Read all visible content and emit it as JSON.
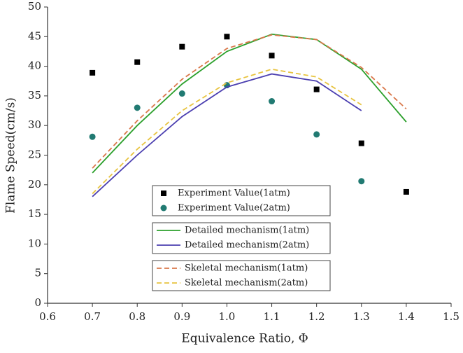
{
  "chart_data": {
    "type": "line",
    "xlabel": "Equivalence Ratio, Φ",
    "ylabel": "Flame Speed(cm/s)",
    "xlim": [
      0.6,
      1.5
    ],
    "ylim": [
      0,
      50
    ],
    "xticks": [
      0.6,
      0.7,
      0.8,
      0.9,
      {
        "value": 1,
        "label": "1.0"
      },
      1.1,
      1.2,
      1.3,
      1.4,
      1.5
    ],
    "yticks": [
      0,
      5,
      10,
      15,
      20,
      25,
      30,
      35,
      40,
      45,
      50
    ],
    "series": [
      {
        "name": "Experiment Value(1atm)",
        "color": "#000000",
        "kind": "square",
        "x": [
          0.7,
          0.8,
          0.9,
          1,
          1.1,
          1.2,
          1.3,
          1.4
        ],
        "values": [
          38.9,
          40.7,
          43.3,
          45.0,
          41.8,
          36.1,
          27.0,
          18.8
        ]
      },
      {
        "name": "Experiment Value(2atm)",
        "color": "#217a72",
        "kind": "circle",
        "x": [
          0.7,
          0.8,
          0.9,
          1,
          1.1,
          1.2,
          1.3
        ],
        "values": [
          28.1,
          33.0,
          35.4,
          36.8,
          34.1,
          28.5,
          20.6
        ]
      },
      {
        "name": "Detailed mechanism(1atm)",
        "color": "#2ca02c",
        "kind": "solid",
        "x": [
          0.7,
          0.8,
          0.9,
          1,
          1.1,
          1.2,
          1.3,
          1.4
        ],
        "values": [
          22.0,
          30.0,
          37.0,
          42.5,
          45.4,
          44.5,
          39.5,
          30.6
        ]
      },
      {
        "name": "Detailed mechanism(2atm)",
        "color": "#4b3fb0",
        "kind": "solid",
        "x": [
          0.7,
          0.8,
          0.9,
          1,
          1.1,
          1.2,
          1.3
        ],
        "values": [
          18.0,
          25.0,
          31.5,
          36.5,
          38.7,
          37.5,
          32.5
        ]
      },
      {
        "name": "Skeletal mechanism(1atm)",
        "color": "#d9774a",
        "kind": "dashed",
        "x": [
          0.7,
          0.8,
          0.9,
          1,
          1.1,
          1.2,
          1.3,
          1.4
        ],
        "values": [
          22.8,
          30.8,
          37.8,
          43.0,
          45.3,
          44.5,
          39.8,
          32.8
        ]
      },
      {
        "name": "Skeletal mechanism(2atm)",
        "color": "#e8c440",
        "kind": "dashed",
        "x": [
          0.7,
          0.8,
          0.9,
          1,
          1.1,
          1.2,
          1.3
        ],
        "values": [
          18.5,
          26.0,
          32.5,
          37.2,
          39.5,
          38.2,
          33.5
        ]
      }
    ]
  }
}
